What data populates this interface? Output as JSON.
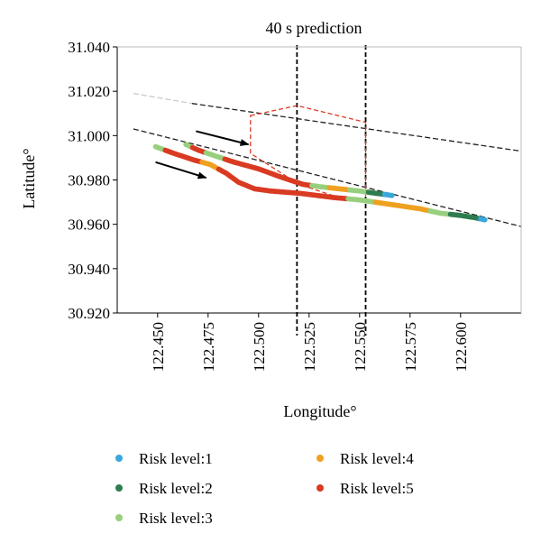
{
  "chart_data": {
    "type": "scatter",
    "title": "40 s prediction",
    "xlabel": "Longitude°",
    "ylabel": "Latitude°",
    "xlim": [
      122.43,
      122.63
    ],
    "ylim": [
      30.92,
      31.04
    ],
    "x_ticks": [
      "122.450",
      "122.475",
      "122.500",
      "122.525",
      "122.550",
      "122.575",
      "122.600"
    ],
    "x_tick_values": [
      122.45,
      122.475,
      122.5,
      122.525,
      122.55,
      122.575,
      122.6
    ],
    "y_ticks": [
      "31.040",
      "31.020",
      "31.000",
      "30.980",
      "30.960",
      "30.940",
      "30.920"
    ],
    "y_tick_values": [
      31.04,
      31.02,
      31.0,
      30.98,
      30.96,
      30.94,
      30.92
    ],
    "grid": false,
    "legend_position": "bottom",
    "legend": [
      {
        "label": "Risk level:1",
        "color": "#3aa7dd"
      },
      {
        "label": "Risk level:2",
        "color": "#2e7d4f"
      },
      {
        "label": "Risk level:3",
        "color": "#98cf7e"
      },
      {
        "label": "Risk level:4",
        "color": "#f0a020"
      },
      {
        "label": "Risk level:5",
        "color": "#d93a22"
      }
    ],
    "series": [
      {
        "id": "trajectory-upper",
        "points": [
          {
            "x": 122.464,
            "y": 30.996,
            "risk": 3
          },
          {
            "x": 122.47,
            "y": 30.9935,
            "risk": 5
          },
          {
            "x": 122.478,
            "y": 30.991,
            "risk": 3
          },
          {
            "x": 122.488,
            "y": 30.988,
            "risk": 5
          },
          {
            "x": 122.5,
            "y": 30.985,
            "risk": 5
          },
          {
            "x": 122.512,
            "y": 30.981,
            "risk": 5
          },
          {
            "x": 122.522,
            "y": 30.978,
            "risk": 5
          },
          {
            "x": 122.53,
            "y": 30.977,
            "risk": 3
          },
          {
            "x": 122.54,
            "y": 30.976,
            "risk": 4
          },
          {
            "x": 122.55,
            "y": 30.975,
            "risk": 3
          },
          {
            "x": 122.558,
            "y": 30.974,
            "risk": 2
          },
          {
            "x": 122.566,
            "y": 30.973,
            "risk": 1
          }
        ]
      },
      {
        "id": "trajectory-lower",
        "points": [
          {
            "x": 122.449,
            "y": 30.995,
            "risk": 3
          },
          {
            "x": 122.458,
            "y": 30.992,
            "risk": 5
          },
          {
            "x": 122.468,
            "y": 30.989,
            "risk": 5
          },
          {
            "x": 122.476,
            "y": 30.987,
            "risk": 4
          },
          {
            "x": 122.484,
            "y": 30.983,
            "risk": 5
          },
          {
            "x": 122.49,
            "y": 30.979,
            "risk": 5
          },
          {
            "x": 122.498,
            "y": 30.976,
            "risk": 5
          },
          {
            "x": 122.506,
            "y": 30.975,
            "risk": 5
          },
          {
            "x": 122.52,
            "y": 30.974,
            "risk": 5
          },
          {
            "x": 122.538,
            "y": 30.972,
            "risk": 5
          },
          {
            "x": 122.55,
            "y": 30.971,
            "risk": 3
          },
          {
            "x": 122.565,
            "y": 30.969,
            "risk": 4
          },
          {
            "x": 122.58,
            "y": 30.967,
            "risk": 4
          },
          {
            "x": 122.59,
            "y": 30.965,
            "risk": 3
          },
          {
            "x": 122.6,
            "y": 30.964,
            "risk": 2
          },
          {
            "x": 122.607,
            "y": 30.963,
            "risk": 2
          },
          {
            "x": 122.612,
            "y": 30.962,
            "risk": 1
          }
        ]
      }
    ],
    "annotations": {
      "vertical_lines_x": [
        122.519,
        122.553
      ],
      "channel_upper": [
        {
          "x": 122.438,
          "y": 31.019
        },
        {
          "x": 122.467,
          "y": 31.0145
        },
        {
          "x": 122.63,
          "y": 30.993
        }
      ],
      "channel_lower": [
        {
          "x": 122.438,
          "y": 31.003
        },
        {
          "x": 122.63,
          "y": 30.959
        }
      ],
      "prediction_region": [
        {
          "x": 122.496,
          "y": 31.009
        },
        {
          "x": 122.519,
          "y": 31.0135
        },
        {
          "x": 122.553,
          "y": 31.006
        },
        {
          "x": 122.553,
          "y": 30.97
        },
        {
          "x": 122.54,
          "y": 30.972
        },
        {
          "x": 122.52,
          "y": 30.978
        },
        {
          "x": 122.496,
          "y": 30.992
        }
      ],
      "arrows": [
        {
          "from": {
            "x": 122.449,
            "y": 30.988
          },
          "to": {
            "x": 122.474,
            "y": 30.981
          }
        },
        {
          "from": {
            "x": 122.469,
            "y": 31.002
          },
          "to": {
            "x": 122.495,
            "y": 30.996
          }
        }
      ]
    }
  }
}
